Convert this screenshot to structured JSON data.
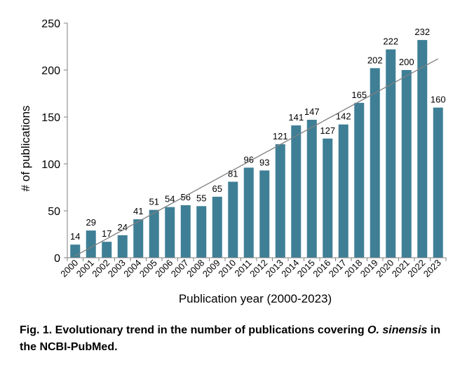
{
  "chart_data": {
    "type": "bar",
    "categories": [
      "2000",
      "2001",
      "2002",
      "2003",
      "2004",
      "2005",
      "2006",
      "2007",
      "2008",
      "2009",
      "2010",
      "2011",
      "2012",
      "2013",
      "2014",
      "2015",
      "2016",
      "2017",
      "2018",
      "2019",
      "2020",
      "2021",
      "2022",
      "2023"
    ],
    "values": [
      14,
      29,
      17,
      24,
      41,
      51,
      54,
      56,
      55,
      65,
      81,
      96,
      93,
      121,
      141,
      147,
      127,
      142,
      165,
      202,
      222,
      200,
      232,
      160
    ],
    "data_labels": [
      "14",
      "29",
      "17",
      "24",
      "41",
      "51",
      "54",
      "56",
      "55",
      "65",
      "81",
      "96",
      "93",
      "121",
      "141",
      "147",
      "127",
      "142",
      "165",
      "202",
      "222",
      "200",
      "232",
      "160"
    ],
    "xlabel": "Publication year (2000-2023)",
    "ylabel": "# of publications",
    "ylim": [
      0,
      250
    ],
    "yticks": [
      "0",
      "50",
      "100",
      "150",
      "200",
      "250"
    ],
    "grid": false,
    "trendline": {
      "type": "linear",
      "start_value": 2,
      "end_value": 212
    },
    "colors": {
      "bar": "#3e7f96",
      "trend": "#7f7f7f",
      "axis": "#7f7f7f"
    }
  },
  "caption": {
    "prefix": "Fig. 1. Evolutionary trend in the number of publications covering ",
    "species": "O. sinensis",
    "suffix": " in the NCBI-PubMed."
  }
}
